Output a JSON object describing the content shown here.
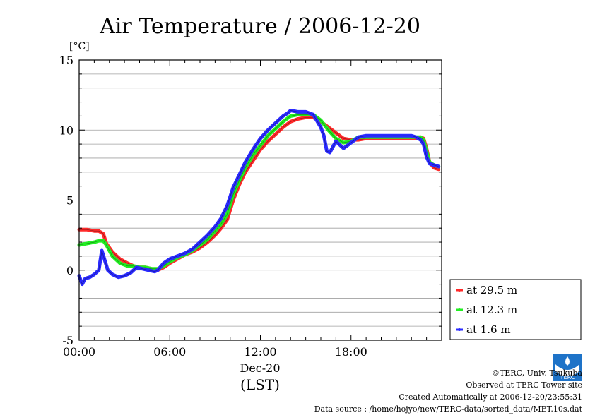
{
  "chart_data": {
    "type": "line",
    "title": "Air Temperature / 2006-12-20",
    "ylabel": "[°C]",
    "xlabel": "(LST)",
    "date_label": "Dec-20",
    "xlim": [
      0,
      24
    ],
    "ylim": [
      -5,
      15
    ],
    "x_ticks": [
      {
        "value": 0,
        "label": "00:00"
      },
      {
        "value": 6,
        "label": "06:00"
      },
      {
        "value": 12,
        "label": "12:00"
      },
      {
        "value": 18,
        "label": "18:00"
      }
    ],
    "y_ticks": [
      {
        "value": -5,
        "label": "-5"
      },
      {
        "value": 0,
        "label": "0"
      },
      {
        "value": 5,
        "label": "5"
      },
      {
        "value": 10,
        "label": "10"
      },
      {
        "value": 15,
        "label": "15"
      }
    ],
    "grid": true,
    "legend_position": "right",
    "series": [
      {
        "name": "at 29.5 m",
        "color": "#ff2a2a",
        "x": [
          0,
          0.5,
          1,
          1.3,
          1.6,
          1.8,
          2.2,
          2.7,
          3.2,
          3.6,
          4.0,
          4.4,
          4.8,
          5.2,
          5.6,
          6.0,
          6.5,
          7.0,
          7.5,
          8.0,
          8.5,
          9.0,
          9.4,
          9.8,
          10.2,
          10.6,
          11.0,
          11.5,
          12.0,
          12.5,
          13.0,
          13.5,
          14.0,
          14.5,
          15.0,
          15.5,
          16.0,
          16.5,
          17.0,
          17.5,
          18.0,
          18.5,
          19.0,
          20.0,
          21.0,
          22.0,
          22.3,
          22.6,
          22.8,
          23.0,
          23.2,
          23.5,
          23.8
        ],
        "values": [
          2.9,
          2.9,
          2.8,
          2.8,
          2.6,
          1.9,
          1.3,
          0.8,
          0.5,
          0.3,
          0.2,
          0.2,
          0.1,
          0.0,
          0.2,
          0.5,
          0.8,
          1.1,
          1.3,
          1.6,
          2.0,
          2.5,
          3.0,
          3.6,
          5.0,
          6.1,
          7.0,
          7.8,
          8.6,
          9.2,
          9.7,
          10.2,
          10.6,
          10.8,
          10.9,
          10.9,
          10.6,
          10.2,
          9.8,
          9.4,
          9.3,
          9.3,
          9.4,
          9.4,
          9.4,
          9.4,
          9.4,
          9.5,
          9.4,
          8.7,
          7.7,
          7.3,
          7.2
        ]
      },
      {
        "name": "at 12.3 m",
        "color": "#22ee22",
        "x": [
          0,
          0.5,
          1,
          1.3,
          1.6,
          1.8,
          2.2,
          2.7,
          3.2,
          3.6,
          4.0,
          4.4,
          4.8,
          5.2,
          5.6,
          6.0,
          6.5,
          7.0,
          7.5,
          8.0,
          8.5,
          9.0,
          9.4,
          9.8,
          10.2,
          10.6,
          11.0,
          11.5,
          12.0,
          12.5,
          13.0,
          13.5,
          14.0,
          14.5,
          15.0,
          15.5,
          16.0,
          16.5,
          17.0,
          17.5,
          18.0,
          18.5,
          19.0,
          20.0,
          21.0,
          22.0,
          22.3,
          22.6,
          22.8,
          23.0,
          23.2,
          23.5,
          23.8
        ],
        "values": [
          1.8,
          1.9,
          2.0,
          2.1,
          2.1,
          1.8,
          1.0,
          0.5,
          0.3,
          0.3,
          0.2,
          0.2,
          0.1,
          0.1,
          0.3,
          0.6,
          0.9,
          1.1,
          1.4,
          1.8,
          2.2,
          2.8,
          3.3,
          4.0,
          5.4,
          6.4,
          7.3,
          8.2,
          8.9,
          9.6,
          10.1,
          10.6,
          11.0,
          11.1,
          11.1,
          11.1,
          10.7,
          10.0,
          9.4,
          9.1,
          9.2,
          9.5,
          9.5,
          9.5,
          9.5,
          9.5,
          9.5,
          9.5,
          9.3,
          8.5,
          7.7,
          7.5,
          7.4
        ]
      },
      {
        "name": "at 1.6 m",
        "color": "#2a2aff",
        "x": [
          0,
          0.2,
          0.4,
          0.7,
          1.0,
          1.3,
          1.5,
          1.7,
          1.9,
          2.2,
          2.6,
          3.0,
          3.4,
          3.8,
          4.2,
          4.6,
          5.0,
          5.2,
          5.6,
          6.0,
          6.5,
          7.0,
          7.5,
          8.0,
          8.5,
          9.0,
          9.4,
          9.8,
          10.2,
          10.6,
          11.0,
          11.5,
          12.0,
          12.5,
          13.0,
          13.5,
          13.8,
          14.0,
          14.5,
          15.0,
          15.5,
          16.0,
          16.2,
          16.4,
          16.6,
          16.8,
          17.0,
          17.2,
          17.5,
          18.0,
          18.5,
          19.0,
          20.0,
          21.0,
          22.0,
          22.3,
          22.6,
          22.8,
          23.0,
          23.2,
          23.5,
          23.8
        ],
        "values": [
          -0.4,
          -1.0,
          -0.6,
          -0.5,
          -0.3,
          0.0,
          1.4,
          0.7,
          0.0,
          -0.3,
          -0.5,
          -0.4,
          -0.2,
          0.2,
          0.1,
          0.0,
          -0.1,
          0.0,
          0.5,
          0.8,
          1.0,
          1.2,
          1.5,
          2.0,
          2.5,
          3.1,
          3.7,
          4.6,
          5.9,
          6.8,
          7.7,
          8.6,
          9.4,
          10.0,
          10.5,
          11.0,
          11.2,
          11.4,
          11.3,
          11.3,
          11.1,
          10.2,
          9.6,
          8.5,
          8.4,
          8.8,
          9.2,
          9.0,
          8.7,
          9.1,
          9.5,
          9.6,
          9.6,
          9.6,
          9.6,
          9.5,
          9.3,
          9.0,
          8.1,
          7.6,
          7.5,
          7.4
        ]
      }
    ]
  },
  "footer": {
    "copyright": "©TERC, Univ. Tsukuba",
    "observed": "Observed at TERC Tower site",
    "created": "Created Automatically at 2006-12-20/23:55:31",
    "source": "Data source : /home/hojyo/new/TERC-data/sorted_data/MET.10s.dat"
  },
  "logo": {
    "icon": "terc-logo-icon",
    "text": "TERC"
  }
}
